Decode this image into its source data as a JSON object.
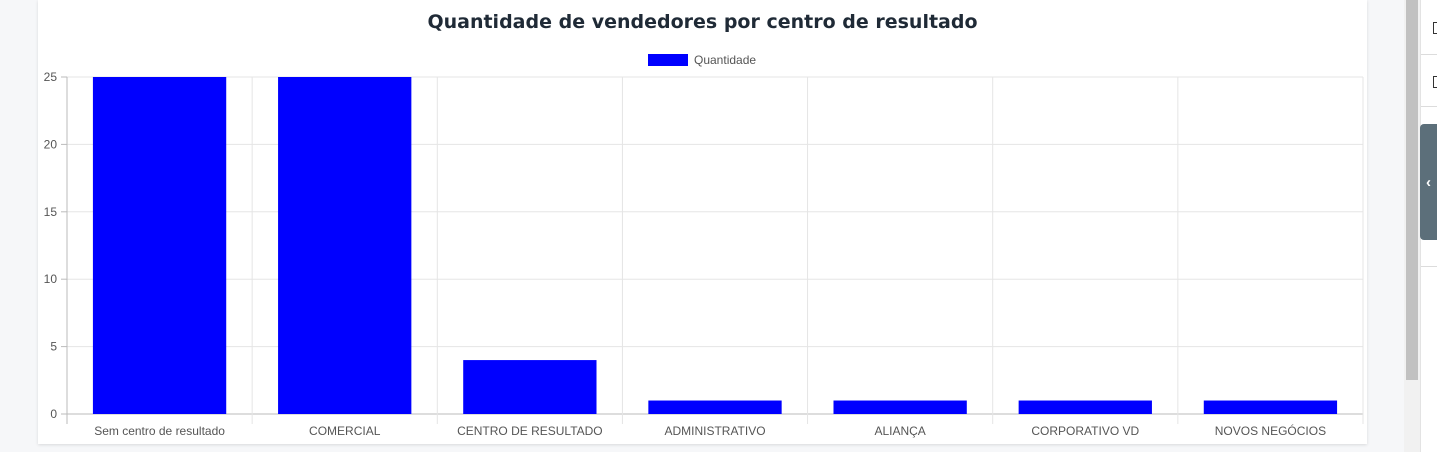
{
  "chart_data": {
    "type": "bar",
    "title": "Quantidade de vendedores por centro de resultado",
    "categories": [
      "Sem centro de resultado",
      "COMERCIAL",
      "CENTRO DE RESULTADO",
      "ADMINISTRATIVO",
      "ALIANÇA",
      "CORPORATIVO VD",
      "NOVOS NEGÓCIOS"
    ],
    "series": [
      {
        "name": "Quantidade",
        "values": [
          25,
          25,
          4,
          1,
          1,
          1,
          1
        ],
        "color": "#0000ff"
      }
    ],
    "ylim": [
      0,
      25
    ],
    "yticks": [
      0,
      5,
      10,
      15,
      20,
      25
    ],
    "grid": true,
    "legend_position": "top-center"
  },
  "side_panel": {
    "collapse_icon": "chevron-left-icon",
    "collapse_glyph": "‹"
  },
  "colors": {
    "bar": "#0000ff",
    "grid": "#e5e5e5",
    "title": "#1f2a36",
    "side_tab": "#5c6f7a"
  }
}
